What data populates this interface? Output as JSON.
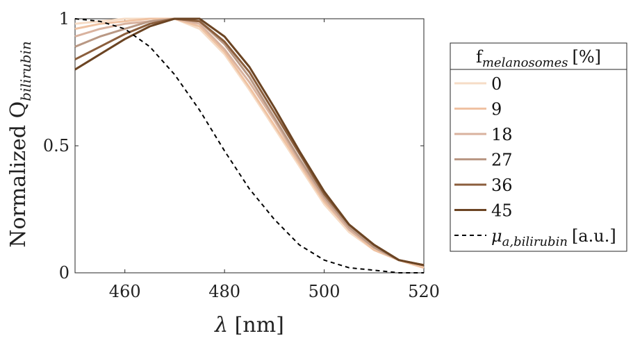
{
  "chart_data": {
    "type": "line",
    "xlabel": "λ [nm]",
    "ylabel_main": "Normalized Q",
    "ylabel_sub": "bilirubin",
    "xlim": [
      450,
      520
    ],
    "ylim": [
      0,
      1
    ],
    "xticks": [
      460,
      480,
      500,
      520
    ],
    "yticks": [
      0,
      0.5,
      1
    ],
    "ytick_labels": [
      "0",
      "0.5",
      "1"
    ],
    "x": [
      450,
      455,
      460,
      465,
      470,
      475,
      480,
      485,
      490,
      495,
      500,
      505,
      510,
      515,
      520
    ],
    "legend": {
      "title_main": "f",
      "title_sub": "melanosomes",
      "title_unit": "[%]",
      "placement": "right-outside"
    },
    "series": [
      {
        "name": "0",
        "color": "#f6dcc6",
        "values": [
          0.98,
          0.99,
          1.0,
          1.0,
          1.0,
          0.96,
          0.86,
          0.72,
          0.57,
          0.42,
          0.27,
          0.16,
          0.09,
          0.05,
          0.02
        ]
      },
      {
        "name": "9",
        "color": "#efc2a2",
        "values": [
          0.96,
          0.98,
          0.99,
          1.0,
          1.0,
          0.97,
          0.87,
          0.73,
          0.58,
          0.43,
          0.28,
          0.17,
          0.09,
          0.05,
          0.02
        ]
      },
      {
        "name": "18",
        "color": "#d9b29e",
        "values": [
          0.93,
          0.96,
          0.98,
          0.99,
          1.0,
          0.98,
          0.88,
          0.75,
          0.6,
          0.44,
          0.29,
          0.17,
          0.1,
          0.05,
          0.03
        ]
      },
      {
        "name": "27",
        "color": "#b99884",
        "values": [
          0.89,
          0.93,
          0.96,
          0.99,
          1.0,
          0.99,
          0.9,
          0.77,
          0.61,
          0.45,
          0.3,
          0.18,
          0.1,
          0.05,
          0.03
        ]
      },
      {
        "name": "36",
        "color": "#8b5e3c",
        "values": [
          0.84,
          0.89,
          0.94,
          0.98,
          1.0,
          0.99,
          0.91,
          0.79,
          0.63,
          0.47,
          0.31,
          0.19,
          0.11,
          0.05,
          0.03
        ]
      },
      {
        "name": "45",
        "color": "#6b4423",
        "values": [
          0.8,
          0.86,
          0.92,
          0.97,
          1.0,
          1.0,
          0.93,
          0.81,
          0.65,
          0.48,
          0.32,
          0.19,
          0.11,
          0.05,
          0.03
        ]
      },
      {
        "name": "μ_a,bilirubin [a.u.]",
        "label_main": "μ",
        "label_sub": "a,bilirubin",
        "label_unit": "[a.u.]",
        "color": "#000000",
        "dashed": true,
        "values": [
          1.0,
          0.99,
          0.96,
          0.89,
          0.78,
          0.64,
          0.48,
          0.33,
          0.21,
          0.11,
          0.05,
          0.02,
          0.01,
          0.0,
          0.0
        ]
      }
    ]
  }
}
